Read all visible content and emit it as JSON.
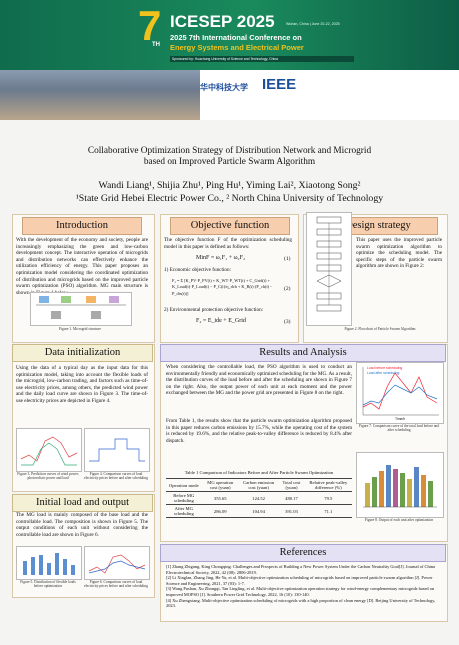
{
  "header": {
    "edition": "7",
    "edition_suffix": "TH",
    "logo": "ICESEP 2025",
    "location": "Wuhan, China | June 20-22, 2025",
    "line1": "2025 7th International Conference on",
    "line2": "Energy Systems and Electrical Power",
    "sponsor": "Sponsored by: Huazhong University of Science and Technology, China",
    "university": "华中科技大学",
    "ieee": "IEEE"
  },
  "title": {
    "line1": "Collaborative Optimization Strategy of Distribution Network and Microgrid",
    "line2": "based on Improved Particle Swarm Algorithm"
  },
  "authors": {
    "names": "Wandi Liang¹, Shijia Zhu¹, Ping Hu¹, Yiming Lai², Xiaotong Song²",
    "affiliation": "¹State Grid Hebei Electric Power Co., ² North China University of Technology"
  },
  "introduction": {
    "heading": "Introduction",
    "text": "With the development of the economy and society, people are increasingly emphasizing the green and low-carbon development concept. The interactive operation of microgrids and distribution networks can effectively enhance the utilization efficiency of energy. This paper proposes an optimization model considering the coordinated optimization of distribution and microgrids based on the improved particle swarm optimization (PSO) algorithm. MG main structure is shown in Figure 1 below.",
    "caption": "Figure 1. Microgrid structure"
  },
  "objective": {
    "heading": "Objective function",
    "text": "The objective function F of the optimization scheduling model in this paper is defined as follows:",
    "eq1": "MinF = ω₁F₁ + ω₂F₂",
    "eq1_no": "(1)",
    "sub1": "1) Economic objective function:",
    "eq2": "F₁ = Σ [K_PV·P_PV(t) + K_WT·P_WT(t) + C_Grid(t) + K_Load(t)·P_Load(t) − P_C(t)/η_dch + K_B(t)·(P_ch(t) − P_dis(t))]",
    "eq2_no": "(2)",
    "sub2": "2) Environmental protection objective function:",
    "eq3": "F₂ = E_ide + E_Grid",
    "eq3_no": "(3)"
  },
  "design": {
    "heading": "Design strategy",
    "text": "This paper uses the improved particle swarm optimization algorithm to optimize the scheduling model. The specific steps of the particle swarm algorithm are shown in Figure 2:",
    "caption": "Figure 2. Flowchart of Particle Swarm Algorithm"
  },
  "data_init": {
    "heading": "Data initialization",
    "text": "Using the data of a typical day as the input data for this optimization model, taking into account the flexible loads of the microgrid, low-carbon trading, and factors such as time-of-use electricity prices, among others, the predicted wind power and the daily load curve are shown in Figure 3. The time-of-use electricity prices are depicted in Figure 4.",
    "caption3": "Figure 3. Prediction curves of wind power, photovoltaic power and load",
    "caption4": "Figure 4. Comparison curves of load electricity prices before and after scheduling"
  },
  "initial_load": {
    "heading": "Initial load and output",
    "text": "The MG load is mainly composed of the base load and the controllable load. The composition is shown in Figure 5. The output conditions of each unit without considering the controllable load are shown in Figure 6.",
    "caption5": "Figure 5. Distribution of flexible loads before optimization",
    "caption6": "Figure 6. Comparison curves of load electricity prices before and after scheduling"
  },
  "results": {
    "heading": "Results and Analysis",
    "text1": "When considering the controllable load, the PSO algorithm is used to conduct an environmentally friendly and economically optimized scheduling for the MG. As a result, the distribution curves of the load before and after the scheduling are shown in Figure 7 on the right. Also, the output power of each unit at each moment and the power exchanged between the MG and the power grid are presented in Figure 8 on the right.",
    "text2": "From Table 1, the results show that the particle swarm optimization algorithm proposed in this paper reduces carbon emissions by 15.7%, while the operating cost of the system is reduced by 19.6%, and the relative peak-to-valley difference is reduced by 8.4% after dispatch.",
    "legend1": "Load before scheduling",
    "legend2": "Load after scheduling",
    "xlabel": "Time/h",
    "caption7": "Figure 7. Comparison curve of the total load before and after scheduling",
    "caption8": "Figure 8. Output of each unit after optimization",
    "table": {
      "caption": "Table 1 Comparison of Indicators Before and After Particle Swarm Optimization",
      "header": [
        "Operation mode",
        "MG operation cost (yuan)",
        "Carbon emission cost (yuan)",
        "Total cost (yuan)",
        "Relative peak-valley difference (%)"
      ],
      "rows": [
        [
          "Before MG scheduling",
          "355.65",
          "124.52",
          "480.17",
          "79.5"
        ],
        [
          "After MG scheduling",
          "286.09",
          "104.94",
          "391.03",
          "71.1"
        ]
      ]
    }
  },
  "references": {
    "heading": "References",
    "items": [
      "[1] Zhang Zhigang, King Chongqing. Challenges and Prospects of Building a New Power System Under the Carbon Neutrality Goal[J]. Journal of China Electrotechnical Society, 2022, 42 (08): 2806-2819.",
      "[2] Li Xinglan, Zhang Jing, He Yu, et al. Multi-objective optimization scheduling of microgrids based on improved particle swarm algorithm [J]. Power Science and Engineering, 2021, 37 (03): 1-7.",
      "[3] Wang Pushan, Xu Zhongqi, Tan Lingling, et al. Multi-objective optimization operation strategy for wind-energy complementary microgrids based on improved MOPSO [J]. Southern Power Grid Technology, 2022, 16 (10): 130-140.",
      "[4] Xu Zhengxiang. Multi-objective optimization scheduling of microgrids with a high proportion of clean energy [D]. Beijing University of Technology, 2023."
    ]
  }
}
